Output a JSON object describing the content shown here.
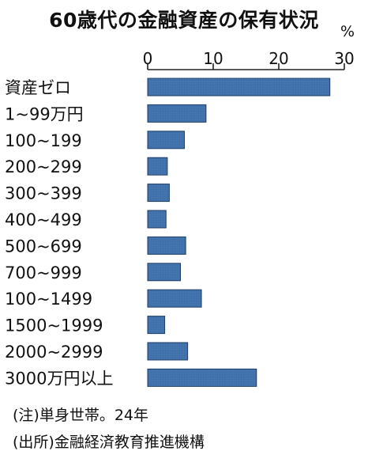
{
  "title": "60歳代の金融資産の保有状況",
  "chart_data": {
    "type": "bar",
    "orientation": "horizontal",
    "unit": "%",
    "xlim": [
      0,
      30
    ],
    "ticks": [
      0,
      10,
      20,
      30
    ],
    "categories": [
      "資産ゼロ",
      "1~99万円",
      "100~199",
      "200~299",
      "300~399",
      "400~499",
      "500~699",
      "700~999",
      "100~1499",
      "1500~1999",
      "2000~2999",
      "3000万円以上"
    ],
    "values": [
      27.8,
      8.9,
      5.6,
      3.0,
      3.3,
      2.8,
      5.8,
      5.0,
      8.2,
      2.6,
      6.1,
      16.6
    ],
    "bar_color": "#3f70aa"
  },
  "notes": [
    "(注)単身世帯。24年",
    "(出所)金融経済教育推進機構"
  ]
}
